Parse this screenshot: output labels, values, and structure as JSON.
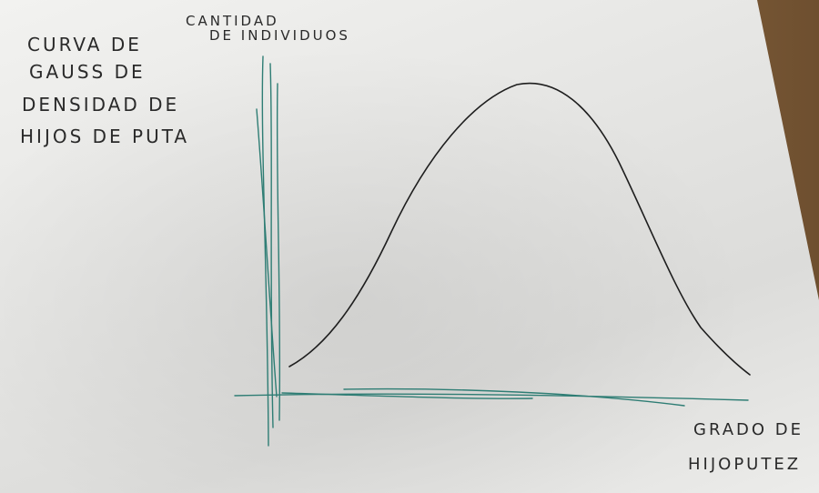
{
  "chart_data": {
    "type": "line",
    "title": [
      "CURVA DE",
      "GAUSS DE",
      "DENSIDAD DE",
      "HIJOS DE PUTA"
    ],
    "ylabel": [
      "CANTIDAD",
      "DE INDIVIDUOS"
    ],
    "xlabel": [
      "GRADO DE",
      "HIJOPUTEZ"
    ],
    "grid": false,
    "colors": {
      "curve": "#1e1e1e",
      "axes": "#2e7d74"
    }
  }
}
